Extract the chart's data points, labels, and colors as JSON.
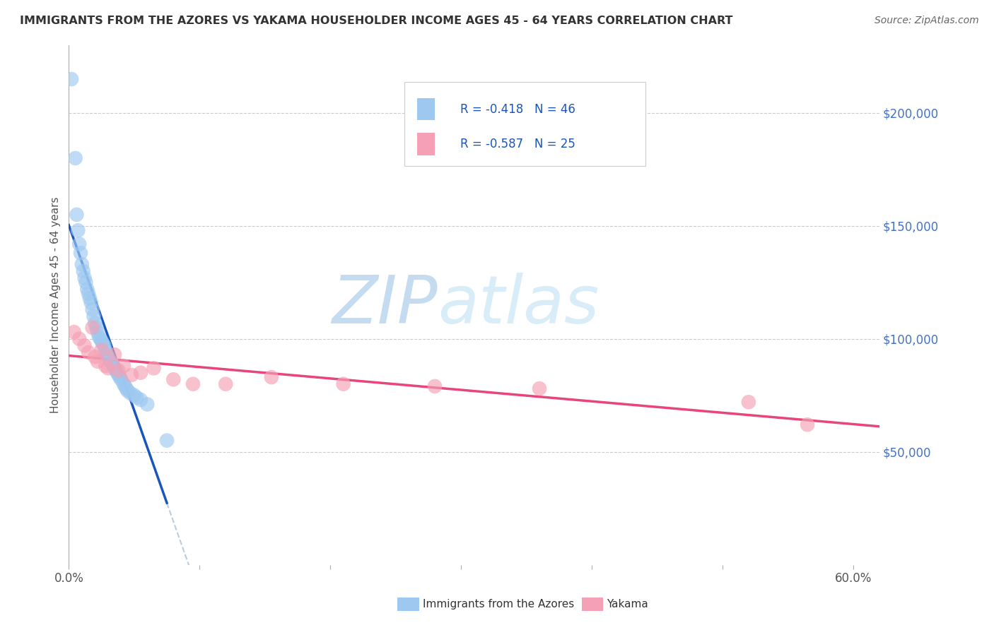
{
  "title": "IMMIGRANTS FROM THE AZORES VS YAKAMA HOUSEHOLDER INCOME AGES 45 - 64 YEARS CORRELATION CHART",
  "source": "Source: ZipAtlas.com",
  "ylabel": "Householder Income Ages 45 - 64 years",
  "xlim": [
    0.0,
    0.62
  ],
  "ylim": [
    0,
    230000
  ],
  "legend_labels": [
    "Immigrants from the Azores",
    "Yakama"
  ],
  "r_azores": -0.418,
  "n_azores": 46,
  "r_yakama": -0.587,
  "n_yakama": 25,
  "color_azores": "#9DC8F0",
  "color_yakama": "#F5A0B5",
  "line_color_azores": "#1A55BB",
  "line_color_yakama": "#E8457A",
  "line_color_ext": "#BBCCDD",
  "background_color": "#FFFFFF",
  "watermark_zip_color": "#C5DCF0",
  "watermark_atlas_color": "#D8EDF8",
  "azores_x": [
    0.002,
    0.005,
    0.006,
    0.007,
    0.008,
    0.009,
    0.01,
    0.011,
    0.012,
    0.013,
    0.014,
    0.015,
    0.016,
    0.017,
    0.018,
    0.019,
    0.02,
    0.021,
    0.022,
    0.023,
    0.024,
    0.025,
    0.026,
    0.027,
    0.028,
    0.029,
    0.03,
    0.032,
    0.033,
    0.034,
    0.035,
    0.036,
    0.037,
    0.038,
    0.039,
    0.04,
    0.042,
    0.043,
    0.044,
    0.045,
    0.047,
    0.05,
    0.052,
    0.055,
    0.06,
    0.075
  ],
  "azores_y": [
    215000,
    180000,
    155000,
    148000,
    142000,
    138000,
    133000,
    130000,
    127000,
    125000,
    122000,
    120000,
    118000,
    116000,
    113000,
    110000,
    107000,
    105000,
    103000,
    101000,
    100000,
    99000,
    98000,
    97000,
    95000,
    93000,
    92000,
    90000,
    89000,
    88000,
    87000,
    86000,
    85000,
    84000,
    83000,
    82000,
    80000,
    79000,
    78000,
    77000,
    76000,
    75000,
    74000,
    73000,
    71000,
    55000
  ],
  "yakama_x": [
    0.004,
    0.008,
    0.012,
    0.015,
    0.018,
    0.02,
    0.022,
    0.025,
    0.028,
    0.03,
    0.035,
    0.038,
    0.042,
    0.048,
    0.055,
    0.065,
    0.08,
    0.095,
    0.12,
    0.155,
    0.21,
    0.28,
    0.36,
    0.52,
    0.565
  ],
  "yakama_y": [
    103000,
    100000,
    97000,
    94000,
    105000,
    92000,
    90000,
    95000,
    88000,
    87000,
    93000,
    86000,
    88000,
    84000,
    85000,
    87000,
    82000,
    80000,
    80000,
    83000,
    80000,
    79000,
    78000,
    72000,
    62000
  ],
  "az_line_x_start": 0.0,
  "az_line_x_end": 0.075,
  "az_line_ext_end": 0.35,
  "ya_line_x_start": 0.0,
  "ya_line_x_end": 0.62
}
